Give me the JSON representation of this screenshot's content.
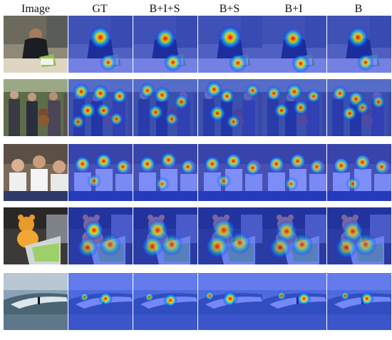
{
  "columns": [
    "Image",
    "GT",
    "B+I+S",
    "B+S",
    "B+I",
    "B"
  ],
  "rows": [
    {
      "subject": "man-with-laptop",
      "maps": {
        "GT": [
          [
            0.5,
            0.38,
            1.0,
            0.16
          ],
          [
            0.62,
            0.82,
            0.7,
            0.12
          ]
        ],
        "B+I+S": [
          [
            0.5,
            0.4,
            0.9,
            0.15
          ],
          [
            0.62,
            0.82,
            0.9,
            0.13
          ]
        ],
        "B+S": [
          [
            0.5,
            0.38,
            1.0,
            0.17
          ],
          [
            0.62,
            0.83,
            0.8,
            0.13
          ]
        ],
        "B+I": [
          [
            0.48,
            0.4,
            0.9,
            0.15
          ],
          [
            0.6,
            0.84,
            0.9,
            0.13
          ]
        ],
        "B": [
          [
            0.48,
            0.38,
            0.9,
            0.15
          ],
          [
            0.6,
            0.82,
            0.8,
            0.12
          ]
        ]
      }
    },
    {
      "subject": "crowd-with-teddy",
      "maps": {
        "GT": [
          [
            0.2,
            0.22,
            0.9,
            0.12
          ],
          [
            0.5,
            0.25,
            0.9,
            0.12
          ],
          [
            0.3,
            0.55,
            0.9,
            0.12
          ],
          [
            0.55,
            0.55,
            0.8,
            0.11
          ],
          [
            0.8,
            0.3,
            0.8,
            0.11
          ],
          [
            0.15,
            0.75,
            0.6,
            0.1
          ],
          [
            0.75,
            0.7,
            0.7,
            0.1
          ]
        ],
        "B+I+S": [
          [
            0.22,
            0.2,
            0.8,
            0.11
          ],
          [
            0.45,
            0.28,
            0.9,
            0.12
          ],
          [
            0.35,
            0.58,
            0.8,
            0.11
          ],
          [
            0.75,
            0.4,
            0.7,
            0.11
          ],
          [
            0.6,
            0.7,
            0.6,
            0.1
          ]
        ],
        "B+S": [
          [
            0.25,
            0.18,
            0.9,
            0.12
          ],
          [
            0.45,
            0.3,
            0.8,
            0.11
          ],
          [
            0.3,
            0.6,
            0.9,
            0.12
          ],
          [
            0.55,
            0.75,
            0.7,
            0.1
          ],
          [
            0.85,
            0.2,
            0.6,
            0.1
          ]
        ],
        "B+I": [
          [
            0.18,
            0.25,
            0.7,
            0.11
          ],
          [
            0.5,
            0.22,
            0.8,
            0.12
          ],
          [
            0.3,
            0.55,
            0.8,
            0.11
          ],
          [
            0.6,
            0.5,
            0.7,
            0.11
          ],
          [
            0.8,
            0.3,
            0.7,
            0.1
          ]
        ],
        "B": [
          [
            0.2,
            0.25,
            0.7,
            0.11
          ],
          [
            0.45,
            0.35,
            0.7,
            0.12
          ],
          [
            0.35,
            0.6,
            0.8,
            0.11
          ],
          [
            0.55,
            0.5,
            0.6,
            0.1
          ],
          [
            0.8,
            0.4,
            0.6,
            0.1
          ]
        ]
      }
    },
    {
      "subject": "three-boys",
      "maps": {
        "GT": [
          [
            0.22,
            0.35,
            0.9,
            0.12
          ],
          [
            0.55,
            0.3,
            0.9,
            0.12
          ],
          [
            0.85,
            0.4,
            0.8,
            0.11
          ],
          [
            0.4,
            0.65,
            0.5,
            0.1
          ]
        ],
        "B+I+S": [
          [
            0.22,
            0.35,
            0.9,
            0.12
          ],
          [
            0.55,
            0.28,
            0.8,
            0.12
          ],
          [
            0.85,
            0.4,
            0.7,
            0.11
          ],
          [
            0.45,
            0.7,
            0.5,
            0.1
          ]
        ],
        "B+S": [
          [
            0.22,
            0.35,
            0.8,
            0.12
          ],
          [
            0.55,
            0.3,
            0.9,
            0.12
          ],
          [
            0.85,
            0.42,
            0.7,
            0.11
          ],
          [
            0.4,
            0.65,
            0.5,
            0.1
          ]
        ],
        "B+I": [
          [
            0.22,
            0.35,
            0.8,
            0.12
          ],
          [
            0.55,
            0.3,
            0.8,
            0.12
          ],
          [
            0.85,
            0.4,
            0.7,
            0.11
          ],
          [
            0.45,
            0.7,
            0.5,
            0.1
          ]
        ],
        "B": [
          [
            0.22,
            0.38,
            0.8,
            0.12
          ],
          [
            0.55,
            0.32,
            0.8,
            0.12
          ],
          [
            0.85,
            0.4,
            0.6,
            0.11
          ],
          [
            0.4,
            0.7,
            0.5,
            0.1
          ]
        ]
      }
    },
    {
      "subject": "orange-teddy-toy",
      "maps": {
        "GT": [
          [
            0.4,
            0.4,
            1.0,
            0.14
          ],
          [
            0.3,
            0.7,
            0.5,
            0.15
          ],
          [
            0.65,
            0.65,
            0.4,
            0.16
          ]
        ],
        "B+I+S": [
          [
            0.38,
            0.4,
            0.7,
            0.16
          ],
          [
            0.3,
            0.68,
            0.6,
            0.16
          ],
          [
            0.6,
            0.65,
            0.5,
            0.16
          ]
        ],
        "B+S": [
          [
            0.4,
            0.4,
            0.6,
            0.17
          ],
          [
            0.3,
            0.68,
            0.6,
            0.17
          ],
          [
            0.65,
            0.62,
            0.5,
            0.16
          ]
        ],
        "B+I": [
          [
            0.38,
            0.42,
            0.6,
            0.16
          ],
          [
            0.28,
            0.7,
            0.5,
            0.16
          ],
          [
            0.62,
            0.65,
            0.5,
            0.16
          ]
        ],
        "B": [
          [
            0.4,
            0.42,
            0.6,
            0.16
          ],
          [
            0.3,
            0.7,
            0.5,
            0.16
          ],
          [
            0.6,
            0.65,
            0.4,
            0.16
          ]
        ]
      }
    },
    {
      "subject": "surfer-on-wave",
      "maps": {
        "GT": [
          [
            0.58,
            0.45,
            1.0,
            0.1
          ],
          [
            0.25,
            0.42,
            0.6,
            0.07
          ]
        ],
        "B+I+S": [
          [
            0.58,
            0.48,
            1.0,
            0.1
          ],
          [
            0.25,
            0.42,
            0.6,
            0.07
          ]
        ],
        "B+S": [
          [
            0.5,
            0.45,
            1.0,
            0.11
          ],
          [
            0.18,
            0.4,
            0.6,
            0.07
          ]
        ],
        "B+I": [
          [
            0.65,
            0.45,
            1.0,
            0.1
          ],
          [
            0.3,
            0.4,
            0.5,
            0.07
          ]
        ],
        "B": [
          [
            0.62,
            0.45,
            1.0,
            0.1
          ],
          [
            0.28,
            0.4,
            0.5,
            0.07
          ]
        ]
      }
    }
  ]
}
